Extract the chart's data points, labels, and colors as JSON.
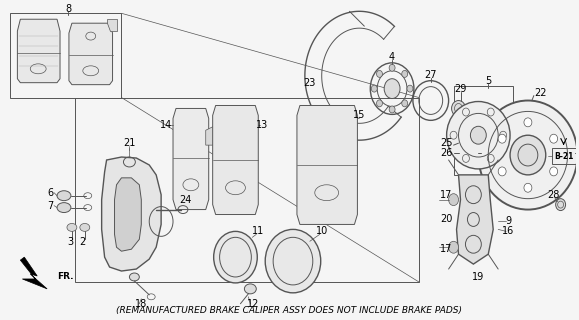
{
  "footnote": "(REMANUFACTURED BRAKE CALIPER ASSY DOES NOT INCLUDE BRAKE PADS)",
  "bg_color": "#f5f5f5",
  "lc": "#555555",
  "footnote_fontsize": 6.5,
  "fig_w": 5.79,
  "fig_h": 3.2,
  "dpi": 100
}
